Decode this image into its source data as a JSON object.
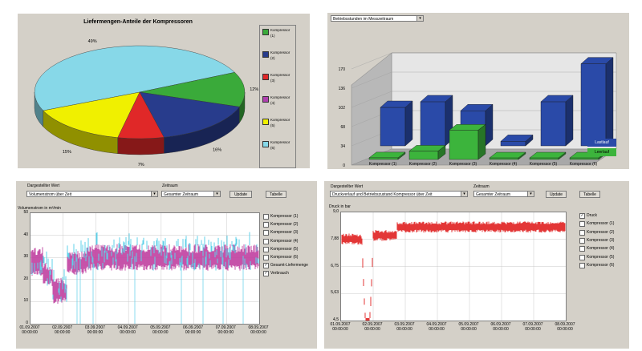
{
  "pie": {
    "title": "Liefermengen-Anteile der Kompressoren",
    "slices": [
      {
        "label": "49%",
        "value": 49,
        "color": "#87d8e8"
      },
      {
        "label": "12%",
        "value": 12,
        "color": "#3aaa3a"
      },
      {
        "label": "16%",
        "value": 16,
        "color": "#283c8c"
      },
      {
        "label": "7%",
        "value": 7,
        "color": "#e02828"
      },
      {
        "label": "15%",
        "value": 15,
        "color": "#f0f000"
      }
    ],
    "legend": [
      {
        "name": "Kompressor",
        "num": "(1)",
        "color": "#3aaa3a"
      },
      {
        "name": "Kompressor",
        "num": "(2)",
        "color": "#283c8c"
      },
      {
        "name": "Kompressor",
        "num": "(3)",
        "color": "#e02828"
      },
      {
        "name": "Kompressor",
        "num": "(4)",
        "color": "#b040b0"
      },
      {
        "name": "Kompressor",
        "num": "(5)",
        "color": "#f0f000"
      },
      {
        "name": "Kompressor",
        "num": "(6)",
        "color": "#87d8e8"
      }
    ]
  },
  "bar3d": {
    "dropdown": "Betriebsstunden im Messzeitraum",
    "chart_data": {
      "type": "bar",
      "categories": [
        "Kompressor (1)",
        "Kompressor (2)",
        "Kompressor (3)",
        "Kompressor (4)",
        "Kompressor (5)",
        "Kompressor (6)"
      ],
      "series": [
        {
          "name": "Lastlauf",
          "values": [
            68,
            78,
            62,
            8,
            78,
            145
          ],
          "color": "#2a4aa8"
        },
        {
          "name": "Leerlauf",
          "values": [
            3,
            15,
            52,
            0,
            0,
            0
          ],
          "color": "#3cb43c"
        }
      ],
      "yticks": [
        "0",
        "34",
        "68",
        "102",
        "136",
        "170"
      ],
      "ylim": [
        0,
        170
      ]
    },
    "legend": [
      "Lastlauf",
      "Leerlauf"
    ]
  },
  "vol": {
    "label_value": "Dargestellter Wert",
    "label_range": "Zeitraum",
    "select_value": "Volumenstrom über Zeit",
    "select_range": "Gesamter Zeitraum",
    "btn_update": "Update",
    "btn_table": "Tabelle",
    "ylabel": "Volumenstrom in m³/min",
    "yticks": [
      "0",
      "10",
      "20",
      "30",
      "40",
      "50"
    ],
    "xticks": [
      [
        "01.09.2007",
        "00:00:00"
      ],
      [
        "02.09.2007",
        "00:00:00"
      ],
      [
        "03.09.2007",
        "00:00:00"
      ],
      [
        "04.09.2007",
        "00:00:00"
      ],
      [
        "05.09.2007",
        "00:00:00"
      ],
      [
        "06.09.2007",
        "00:00:00"
      ],
      [
        "07.09.2007",
        "00:00:00"
      ],
      [
        "08.09.2007",
        "00:00:00"
      ]
    ],
    "checks": [
      {
        "label": "Kompressor (1)",
        "checked": false
      },
      {
        "label": "Kompressor (2)",
        "checked": false
      },
      {
        "label": "Kompressor (3)",
        "checked": false
      },
      {
        "label": "Kompressor (4)",
        "checked": false
      },
      {
        "label": "Kompressor (5)",
        "checked": false
      },
      {
        "label": "Kompressor (6)",
        "checked": false
      },
      {
        "label": "Gesamt-Liefermenge",
        "checked": true
      },
      {
        "label": "Verbrauch",
        "checked": true
      }
    ]
  },
  "press": {
    "label_value": "Dargestellter Wert",
    "label_range": "Zeitraum",
    "select_value": "Druckverlauf und Betriebszustand Kompressor über Zeit",
    "select_range": "Gesamter Zeitraum",
    "btn_update": "Update",
    "btn_table": "Tabelle",
    "ylabel": "Druck in bar",
    "yticks": [
      "4,5",
      "5,63",
      "6,75",
      "7,88",
      "9,0"
    ],
    "xticks": [
      [
        "01.09.2007",
        "00:00:00"
      ],
      [
        "02.09.2007",
        "00:00:00"
      ],
      [
        "03.09.2007",
        "00:00:00"
      ],
      [
        "04.09.2007",
        "00:00:00"
      ],
      [
        "05.09.2007",
        "00:00:00"
      ],
      [
        "06.09.2007",
        "00:00:00"
      ],
      [
        "07.09.2007",
        "00:00:00"
      ],
      [
        "08.09.2007",
        "00:00:00"
      ]
    ],
    "checks": [
      {
        "label": "Druck",
        "checked": true
      },
      {
        "label": "Kompressor (1)",
        "checked": false
      },
      {
        "label": "Kompressor (2)",
        "checked": false
      },
      {
        "label": "Kompressor (3)",
        "checked": false
      },
      {
        "label": "Kompressor (4)",
        "checked": false
      },
      {
        "label": "Kompressor (5)",
        "checked": false
      },
      {
        "label": "Kompressor (6)",
        "checked": false
      }
    ]
  }
}
